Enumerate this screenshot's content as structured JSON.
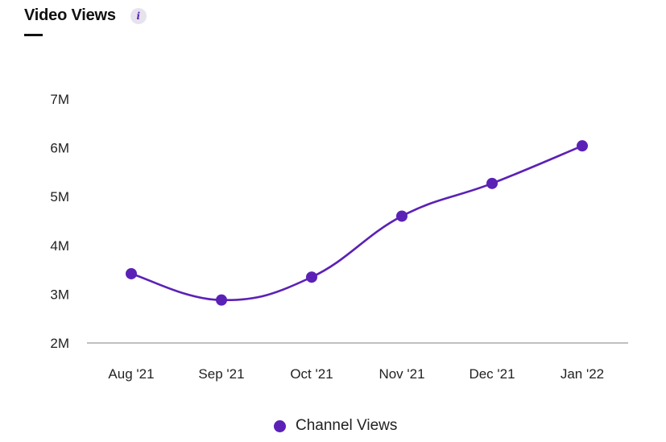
{
  "header": {
    "title": "Video Views",
    "info_icon_text": "i"
  },
  "colors": {
    "accent": "#5b21b6",
    "axis": "#999999"
  },
  "chart_data": {
    "type": "line",
    "categories": [
      "Aug '21",
      "Sep '21",
      "Oct '21",
      "Nov '21",
      "Dec '21",
      "Jan '22"
    ],
    "series": [
      {
        "name": "Channel Views",
        "values": [
          3.42,
          2.88,
          3.35,
          4.6,
          5.27,
          6.04
        ]
      }
    ],
    "y_ticks": [
      2,
      3,
      4,
      5,
      6,
      7
    ],
    "y_tick_labels": [
      "2M",
      "3M",
      "4M",
      "5M",
      "6M",
      "7M"
    ],
    "ylim": [
      2,
      7
    ],
    "title": "Video Views",
    "xlabel": "",
    "ylabel": "",
    "grid": false,
    "legend_position": "bottom-center",
    "smooth": true
  },
  "legend": {
    "label": "Channel Views"
  }
}
